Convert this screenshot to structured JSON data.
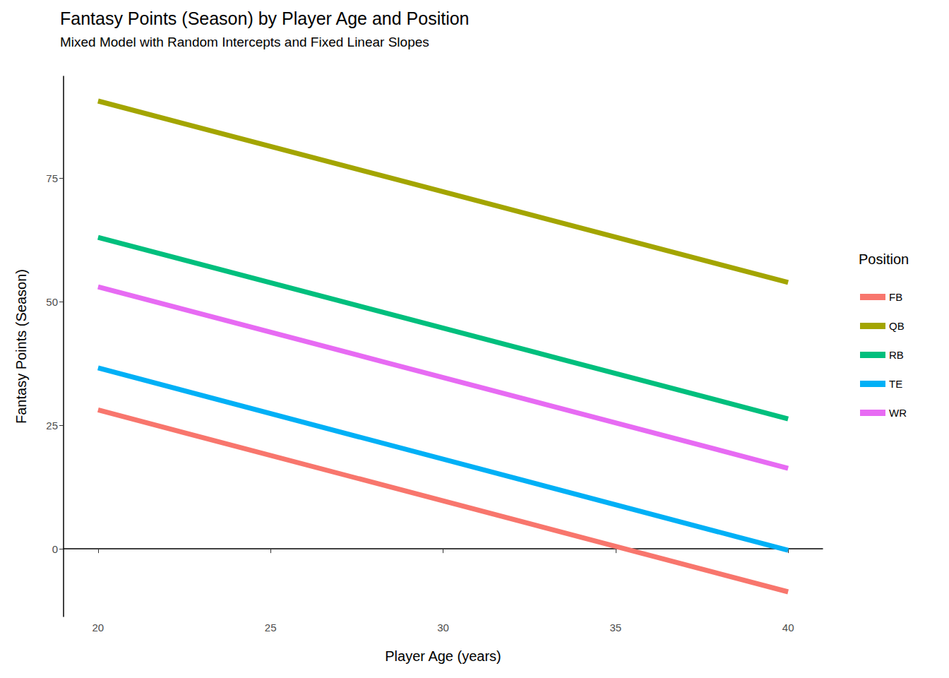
{
  "chart_data": {
    "type": "line",
    "title": "Fantasy Points (Season) by Player Age and Position",
    "subtitle": "Mixed Model with Random Intercepts and Fixed Linear Slopes",
    "x_label": "Player Age (years)",
    "y_label": "Fantasy Points (Season)",
    "legend_title": "Position",
    "x": [
      20,
      40
    ],
    "series": [
      {
        "name": "FB",
        "color": "#F8766D",
        "values": [
          28.1,
          -8.7
        ]
      },
      {
        "name": "QB",
        "color": "#A3A500",
        "values": [
          90.6,
          53.9
        ]
      },
      {
        "name": "RB",
        "color": "#00BF7D",
        "values": [
          63.0,
          26.3
        ]
      },
      {
        "name": "TE",
        "color": "#00B0F6",
        "values": [
          36.6,
          -0.3
        ]
      },
      {
        "name": "WR",
        "color": "#E76BF3",
        "values": [
          53.0,
          16.3
        ]
      }
    ],
    "xlim": [
      19,
      41
    ],
    "ylim": [
      -13.7,
      95.6
    ],
    "xticks": [
      20,
      25,
      30,
      35,
      40
    ],
    "yticks": [
      0,
      25,
      50,
      75
    ],
    "grid": false,
    "legend": "right"
  }
}
